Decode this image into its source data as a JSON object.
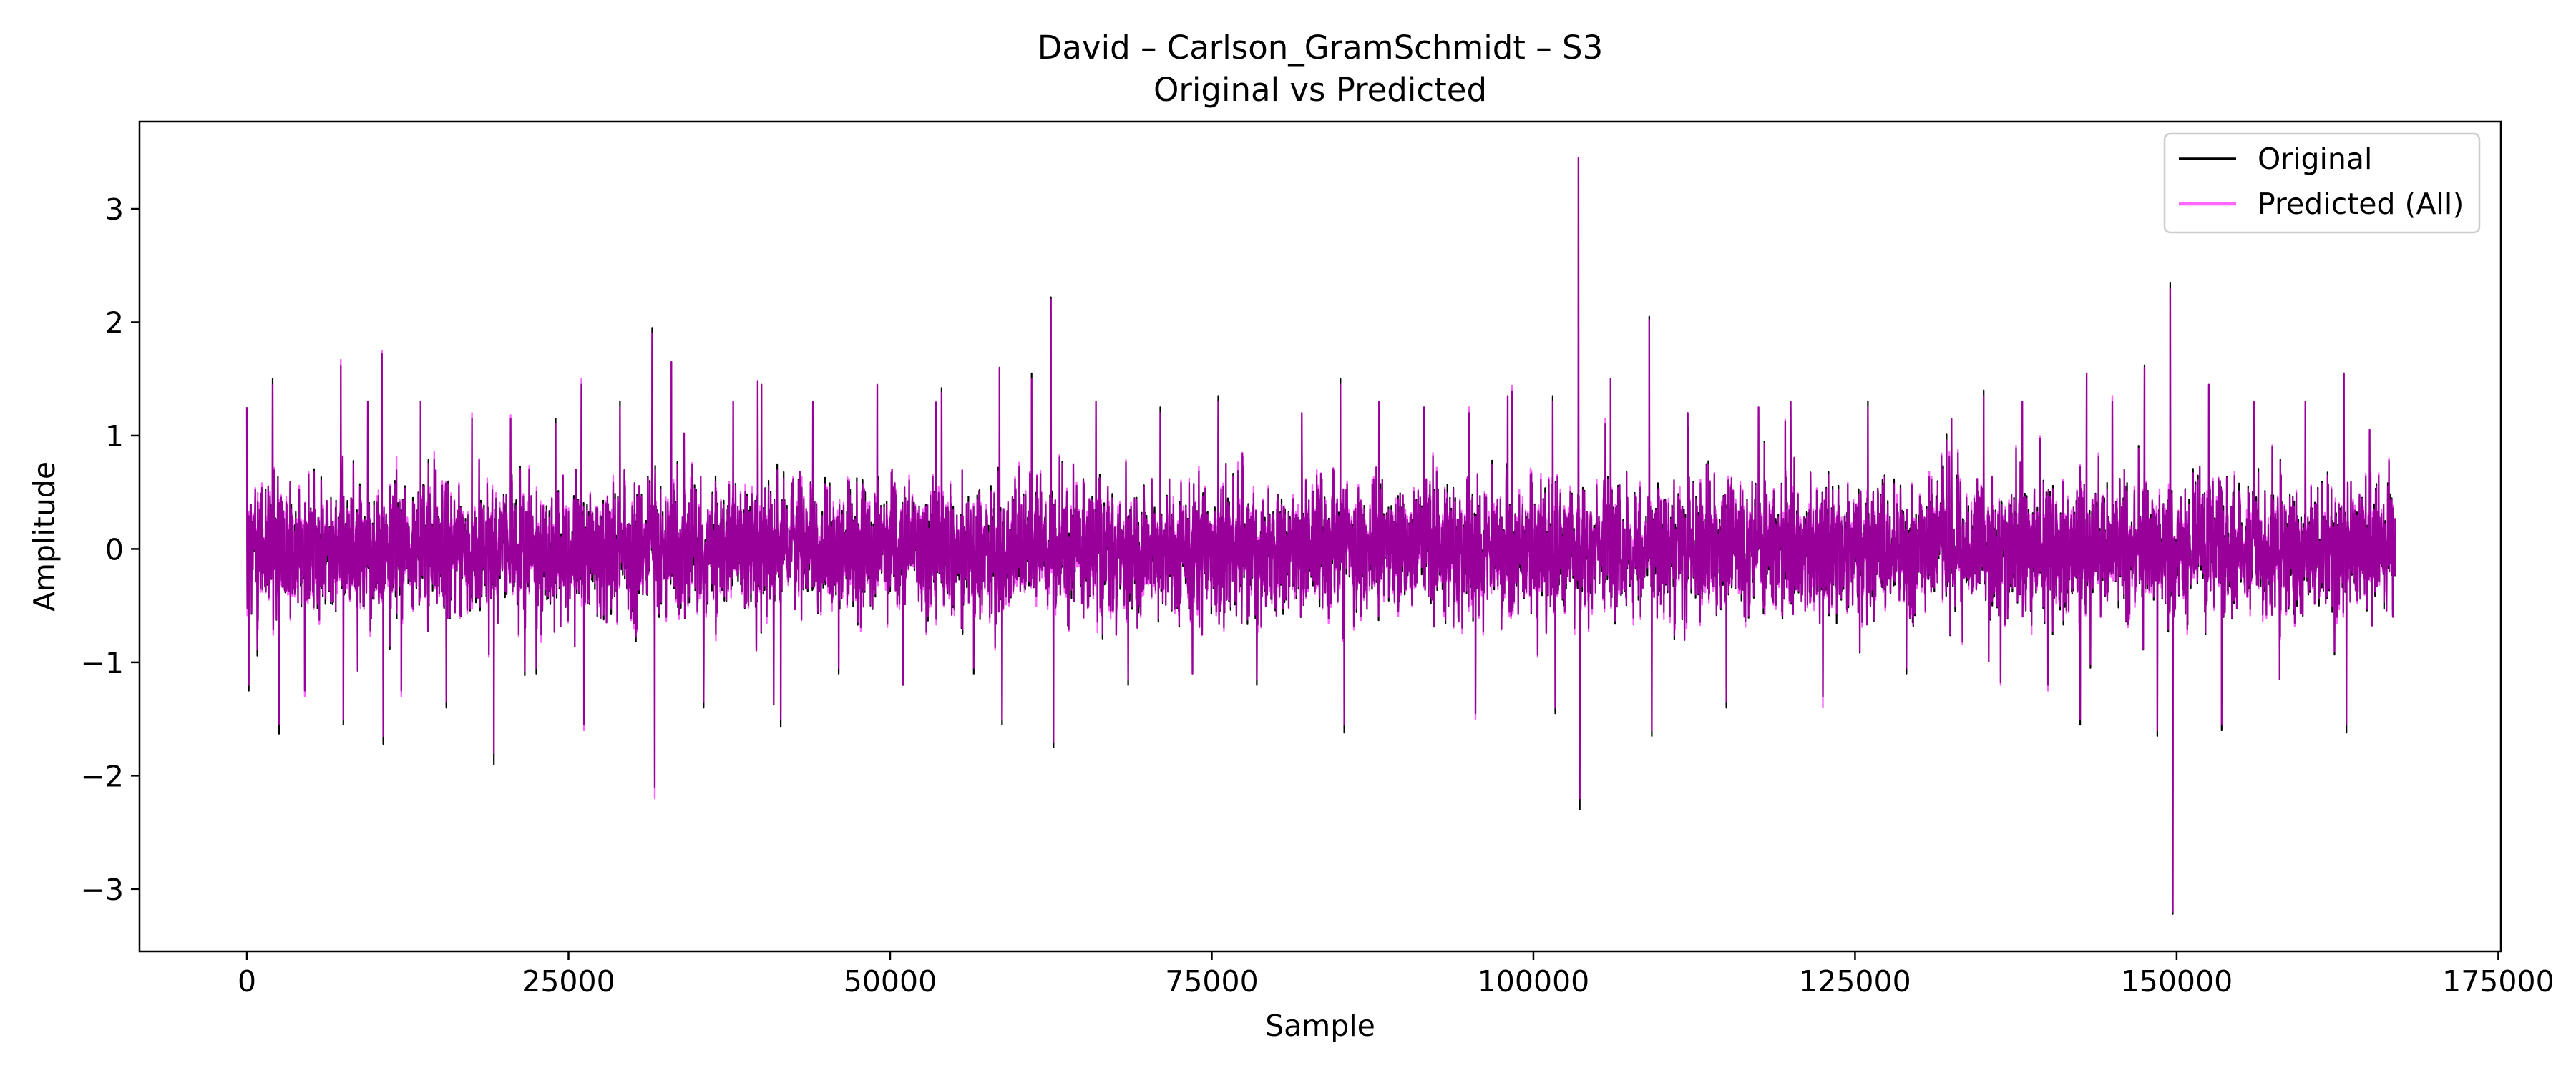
{
  "chart_data": {
    "type": "line",
    "title_line1": "David – Carlson_GramSchmidt – S3",
    "title_line2": "Original vs Predicted",
    "xlabel": "Sample",
    "ylabel": "Amplitude",
    "xlim": [
      -8343,
      175200
    ],
    "ylim": [
      -3.55,
      3.77
    ],
    "x_ticks": [
      {
        "value": 0,
        "label": "0"
      },
      {
        "value": 25000,
        "label": "25000"
      },
      {
        "value": 50000,
        "label": "50000"
      },
      {
        "value": 75000,
        "label": "75000"
      },
      {
        "value": 100000,
        "label": "100000"
      },
      {
        "value": 125000,
        "label": "125000"
      },
      {
        "value": 150000,
        "label": "150000"
      },
      {
        "value": 175000,
        "label": "175000"
      }
    ],
    "y_ticks": [
      {
        "value": 3,
        "label": "3"
      },
      {
        "value": 2,
        "label": "2"
      },
      {
        "value": 1,
        "label": "1"
      },
      {
        "value": 0,
        "label": "0"
      },
      {
        "value": -1,
        "label": "−1"
      },
      {
        "value": -2,
        "label": "−2"
      },
      {
        "value": -3,
        "label": "−3"
      }
    ],
    "grid": false,
    "legend_position": "top-right",
    "x_count": 167000,
    "series": [
      {
        "name": "Original",
        "color": "#000000"
      },
      {
        "name": "Predicted (All)",
        "color": "#ff00ff",
        "alpha": 0.6
      }
    ],
    "band_envelope": {
      "upper_typical": 0.7,
      "lower_typical": -0.7
    },
    "peaks": [
      {
        "x": 0,
        "original": 1.25,
        "predicted": 1.25
      },
      {
        "x": 150,
        "original": -1.25,
        "predicted": -1.2
      },
      {
        "x": 2000,
        "original": 1.5,
        "predicted": 1.45
      },
      {
        "x": 2500,
        "original": -1.63,
        "predicted": -1.55
      },
      {
        "x": 4500,
        "original": -1.25,
        "predicted": -1.3
      },
      {
        "x": 7300,
        "original": 1.62,
        "predicted": 1.67
      },
      {
        "x": 7500,
        "original": -1.55,
        "predicted": -1.5
      },
      {
        "x": 9400,
        "original": 1.3,
        "predicted": 1.3
      },
      {
        "x": 10500,
        "original": 1.72,
        "predicted": 1.75
      },
      {
        "x": 10600,
        "original": -1.72,
        "predicted": -1.65
      },
      {
        "x": 12000,
        "original": -1.25,
        "predicted": -1.3
      },
      {
        "x": 13500,
        "original": 1.3,
        "predicted": 1.3
      },
      {
        "x": 15500,
        "original": -1.4,
        "predicted": -1.35
      },
      {
        "x": 17500,
        "original": 1.15,
        "predicted": 1.2
      },
      {
        "x": 19200,
        "original": -1.9,
        "predicted": -1.8
      },
      {
        "x": 20500,
        "original": 1.15,
        "predicted": 1.18
      },
      {
        "x": 22500,
        "original": -1.1,
        "predicted": -1.05
      },
      {
        "x": 24000,
        "original": 1.15,
        "predicted": 1.1
      },
      {
        "x": 26000,
        "original": 1.45,
        "predicted": 1.5
      },
      {
        "x": 26200,
        "original": -1.55,
        "predicted": -1.6
      },
      {
        "x": 29000,
        "original": 1.3,
        "predicted": 1.25
      },
      {
        "x": 31500,
        "original": 1.95,
        "predicted": 1.9
      },
      {
        "x": 31700,
        "original": -2.1,
        "predicted": -2.2
      },
      {
        "x": 33000,
        "original": 1.65,
        "predicted": 1.65
      },
      {
        "x": 35500,
        "original": -1.4,
        "predicted": -1.35
      },
      {
        "x": 37800,
        "original": 1.3,
        "predicted": 1.3
      },
      {
        "x": 40000,
        "original": 1.45,
        "predicted": 1.45
      },
      {
        "x": 41500,
        "original": -1.57,
        "predicted": -1.5
      },
      {
        "x": 44000,
        "original": 1.3,
        "predicted": 1.3
      },
      {
        "x": 46000,
        "original": -1.1,
        "predicted": -1.05
      },
      {
        "x": 49000,
        "original": 1.45,
        "predicted": 1.45
      },
      {
        "x": 51000,
        "original": -1.2,
        "predicted": -1.2
      },
      {
        "x": 54000,
        "original": 1.42,
        "predicted": 1.38
      },
      {
        "x": 56500,
        "original": -1.1,
        "predicted": -1.05
      },
      {
        "x": 58500,
        "original": 1.6,
        "predicted": 1.6
      },
      {
        "x": 58700,
        "original": -1.55,
        "predicted": -1.5
      },
      {
        "x": 61000,
        "original": 1.55,
        "predicted": 1.5
      },
      {
        "x": 62500,
        "original": 2.22,
        "predicted": 2.2
      },
      {
        "x": 62700,
        "original": -1.75,
        "predicted": -1.7
      },
      {
        "x": 66000,
        "original": 1.3,
        "predicted": 1.3
      },
      {
        "x": 68500,
        "original": -1.2,
        "predicted": -1.15
      },
      {
        "x": 71000,
        "original": 1.25,
        "predicted": 1.2
      },
      {
        "x": 73500,
        "original": -1.1,
        "predicted": -1.1
      },
      {
        "x": 75500,
        "original": 1.35,
        "predicted": 1.3
      },
      {
        "x": 78500,
        "original": -1.2,
        "predicted": -1.15
      },
      {
        "x": 82000,
        "original": 1.2,
        "predicted": 1.2
      },
      {
        "x": 85000,
        "original": 1.5,
        "predicted": 1.45
      },
      {
        "x": 85300,
        "original": -1.62,
        "predicted": -1.55
      },
      {
        "x": 88000,
        "original": 1.3,
        "predicted": 1.3
      },
      {
        "x": 91500,
        "original": 1.25,
        "predicted": 1.25
      },
      {
        "x": 95000,
        "original": 1.2,
        "predicted": 1.25
      },
      {
        "x": 95500,
        "original": -1.45,
        "predicted": -1.5
      },
      {
        "x": 98000,
        "original": 1.35,
        "predicted": 1.35
      },
      {
        "x": 101500,
        "original": 1.35,
        "predicted": 1.3
      },
      {
        "x": 101700,
        "original": -1.45,
        "predicted": -1.4
      },
      {
        "x": 103500,
        "original": 3.45,
        "predicted": 3.45
      },
      {
        "x": 103600,
        "original": -2.3,
        "predicted": -2.2
      },
      {
        "x": 106000,
        "original": 1.5,
        "predicted": 1.5
      },
      {
        "x": 109000,
        "original": 2.05,
        "predicted": 2.02
      },
      {
        "x": 109200,
        "original": -1.65,
        "predicted": -1.6
      },
      {
        "x": 112000,
        "original": 1.2,
        "predicted": 1.2
      },
      {
        "x": 115000,
        "original": -1.4,
        "predicted": -1.35
      },
      {
        "x": 117500,
        "original": 1.25,
        "predicted": 1.25
      },
      {
        "x": 120000,
        "original": 1.3,
        "predicted": 1.3
      },
      {
        "x": 122500,
        "original": -1.3,
        "predicted": -1.4
      },
      {
        "x": 126000,
        "original": 1.3,
        "predicted": 1.25
      },
      {
        "x": 129000,
        "original": -1.1,
        "predicted": -1.05
      },
      {
        "x": 132500,
        "original": 1.15,
        "predicted": 1.15
      },
      {
        "x": 135000,
        "original": 1.4,
        "predicted": 1.35
      },
      {
        "x": 138000,
        "original": 1.3,
        "predicted": 1.3
      },
      {
        "x": 140000,
        "original": -1.2,
        "predicted": -1.25
      },
      {
        "x": 142500,
        "original": -1.55,
        "predicted": -1.5
      },
      {
        "x": 143000,
        "original": 1.55,
        "predicted": 1.55
      },
      {
        "x": 145000,
        "original": 1.3,
        "predicted": 1.35
      },
      {
        "x": 147500,
        "original": 1.62,
        "predicted": 1.6
      },
      {
        "x": 148500,
        "original": -1.65,
        "predicted": -1.6
      },
      {
        "x": 149500,
        "original": 2.35,
        "predicted": 2.3
      },
      {
        "x": 149700,
        "original": -3.22,
        "predicted": -3.2
      },
      {
        "x": 152500,
        "original": 1.45,
        "predicted": 1.45
      },
      {
        "x": 153500,
        "original": -1.6,
        "predicted": -1.55
      },
      {
        "x": 156000,
        "original": 1.3,
        "predicted": 1.3
      },
      {
        "x": 158000,
        "original": -1.15,
        "predicted": -1.15
      },
      {
        "x": 160000,
        "original": 1.3,
        "predicted": 1.3
      },
      {
        "x": 163000,
        "original": 1.55,
        "predicted": 1.55
      },
      {
        "x": 163200,
        "original": -1.62,
        "predicted": -1.55
      },
      {
        "x": 165000,
        "original": 1.05,
        "predicted": 1.05
      },
      {
        "x": 166500,
        "original": 0.78,
        "predicted": 0.8
      },
      {
        "x": 166800,
        "original": -0.6,
        "predicted": -0.6
      }
    ]
  }
}
